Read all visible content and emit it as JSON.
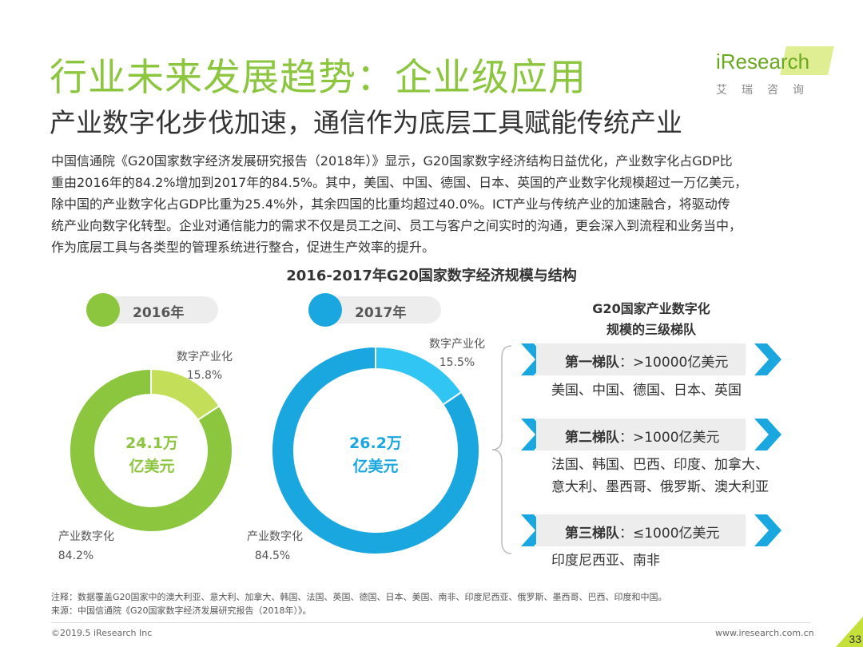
{
  "header": {
    "title": "行业未来发展趋势：企业级应用",
    "subtitle": "产业数字化步伐加速，通信作为底层工具赋能传统产业",
    "logo_word": "iResearch",
    "logo_cn": "艾瑞咨询",
    "brand_color": "#8cc63f"
  },
  "body": {
    "lines": [
      "中国信通院《G20国家数字经济发展研究报告（2018年）》显示，G20国家数字经济结构日益优化，产业数字化占GDP比",
      "重由2016年的84.2%增加到2017年的84.5%。其中，美国、中国、德国、日本、英国的产业数字化规模超过一万亿美元，",
      "除中国的产业数字化占GDP比重为25.4%外，其余四国的比重均超过40.0%。ICT产业与传统产业的加速融合，将驱动传",
      "统产业向数字化转型。企业对通信能力的需求不仅是员工之间、员工与客户之间实时的沟通，更会深入到流程和业务当中，",
      "作为底层工具与各类型的管理系统进行整合，促进生产效率的提升。"
    ]
  },
  "chart_data": [
    {
      "type": "pie",
      "title": "2016-2017年G20国家数字经济规模与结构",
      "year_label": "2016年",
      "center_value": "24.1万",
      "center_unit": "亿美元",
      "color": "#8cc63f",
      "slices": [
        {
          "label": "数字产业化",
          "value": 15.8,
          "display": "15.8%",
          "color": "#c3df5a"
        },
        {
          "label": "产业数字化",
          "value": 84.2,
          "display": "84.2%",
          "color": "#8cc63f"
        }
      ]
    },
    {
      "type": "pie",
      "title": "",
      "year_label": "2017年",
      "center_value": "26.2万",
      "center_unit": "亿美元",
      "color": "#1aa7e0",
      "slices": [
        {
          "label": "数字产业化",
          "value": 15.5,
          "display": "15.5%",
          "color": "#30c5f2"
        },
        {
          "label": "产业数字化",
          "value": 84.5,
          "display": "84.5%",
          "color": "#1aa7e0"
        }
      ]
    }
  ],
  "tiers": {
    "heading_line1": "G20国家产业数字化",
    "heading_line2": "规模的三级梯队",
    "arrow_color": "#1aa7e0",
    "items": [
      {
        "name": "第一梯队",
        "range": "：>10000亿美元",
        "countries": [
          "美国、中国、德国、日本、英国"
        ]
      },
      {
        "name": "第二梯队",
        "range": "：>1000亿美元",
        "countries": [
          "法国、韩国、巴西、印度、加拿大、",
          "意大利、墨西哥、俄罗斯、澳大利亚"
        ]
      },
      {
        "name": "第三梯队",
        "range": "：≤1000亿美元",
        "countries": [
          "印度尼西亚、南非"
        ]
      }
    ]
  },
  "footer": {
    "note": "注释：数据覆盖G20国家中的澳大利亚、意大利、加拿大、韩国、法国、英国、德国、日本、美国、南非、印度尼西亚、俄罗斯、墨西哥、巴西、印度和中国。",
    "source": "来源：中国信通院《G20国家数字经济发展研究报告（2018年）》。",
    "copyright": "©2019.5 iResearch Inc",
    "website": "www.iresearch.com.cn",
    "page_number": "33"
  }
}
